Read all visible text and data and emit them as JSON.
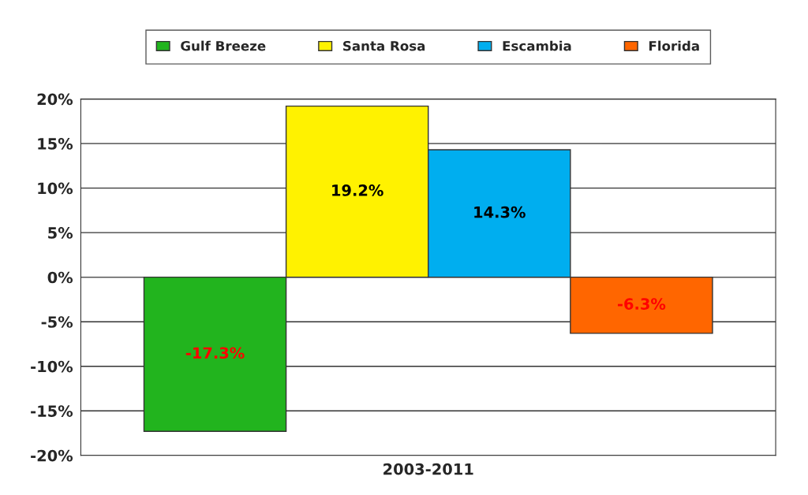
{
  "chart_data": {
    "type": "bar",
    "categories": [
      "2003-2011"
    ],
    "series": [
      {
        "name": "Gulf Breeze",
        "color": "#22b41e",
        "values": [
          -17.3
        ],
        "value_labels": [
          "-17.3%"
        ]
      },
      {
        "name": "Santa Rosa",
        "color": "#fff200",
        "values": [
          19.2
        ],
        "value_labels": [
          "19.2%"
        ]
      },
      {
        "name": "Escambia",
        "color": "#00aeef",
        "values": [
          14.3
        ],
        "value_labels": [
          "14.3%"
        ]
      },
      {
        "name": "Florida",
        "color": "#ff6600",
        "values": [
          -6.3
        ],
        "value_labels": [
          "-6.3%"
        ]
      }
    ],
    "ylim": [
      -20,
      20
    ],
    "yticks": [
      {
        "value": -20,
        "label": "-20%"
      },
      {
        "value": -15,
        "label": "-15%"
      },
      {
        "value": -10,
        "label": "-10%"
      },
      {
        "value": -5,
        "label": "-5%"
      },
      {
        "value": 0,
        "label": "0%"
      },
      {
        "value": 5,
        "label": "5%"
      },
      {
        "value": 10,
        "label": "10%"
      },
      {
        "value": 15,
        "label": "15%"
      },
      {
        "value": 20,
        "label": "20%"
      }
    ],
    "grid": "y",
    "legend": "top"
  }
}
